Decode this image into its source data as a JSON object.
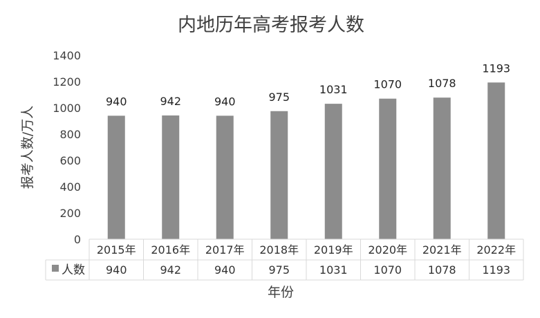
{
  "chart_data": {
    "type": "bar",
    "title": "内地历年高考报考人数",
    "ylabel": "报考人数/万人",
    "xlabel": "年份",
    "categories": [
      "2015年",
      "2016年",
      "2017年",
      "2018年",
      "2019年",
      "2020年",
      "2021年",
      "2022年"
    ],
    "series": [
      {
        "name": "人数",
        "values": [
          940,
          942,
          940,
          975,
          1031,
          1070,
          1078,
          1193
        ],
        "color": "#8c8c8c"
      }
    ],
    "ylim": [
      0,
      1400
    ],
    "yticks": [
      0,
      200,
      400,
      600,
      800,
      1000,
      1200,
      1400
    ],
    "data_labels": true,
    "data_table": true,
    "grid": false,
    "legend": "table-left"
  }
}
